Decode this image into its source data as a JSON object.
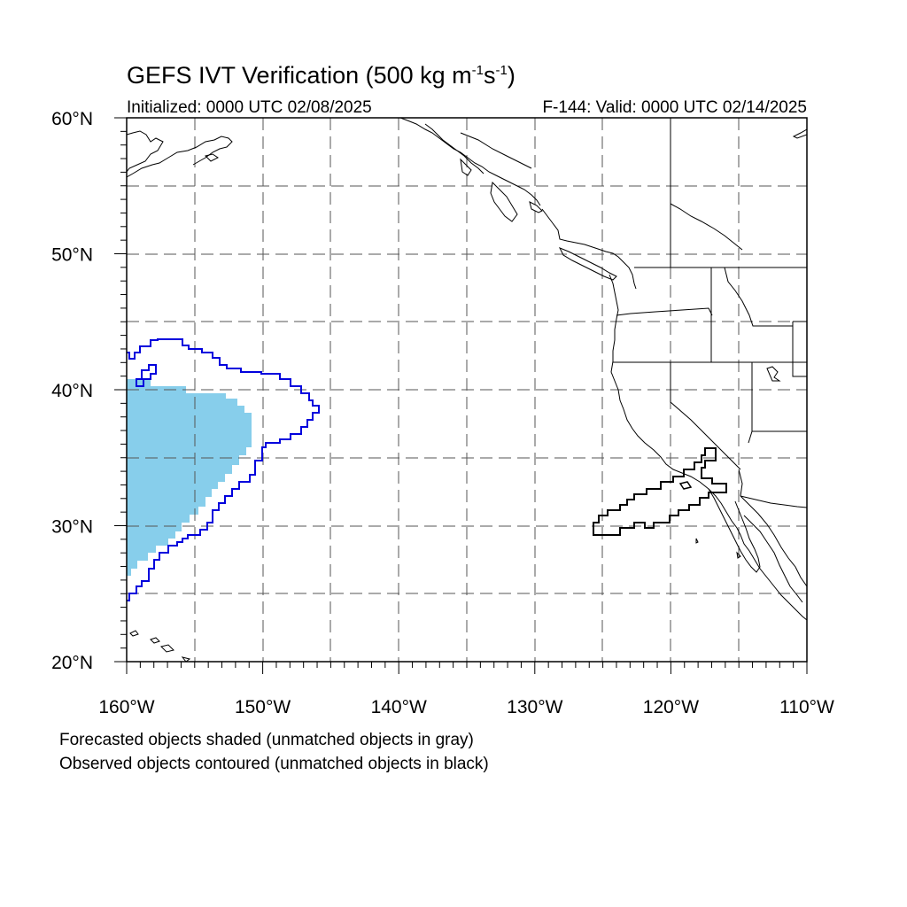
{
  "title": {
    "main": "GEFS IVT Verification (500 kg m",
    "exp1": "-1",
    "mid": "s",
    "exp2": "-1",
    "tail": ")"
  },
  "initialized": "Initialized: 0000 UTC 02/08/2025",
  "valid": "F-144: Valid: 0000 UTC 02/14/2025",
  "notes": [
    "Forecasted objects shaded (unmatched objects in gray)",
    "Observed objects contoured (unmatched objects in black)"
  ],
  "lat_labels": [
    {
      "lat": 60,
      "label": "60°N"
    },
    {
      "lat": 50,
      "label": "50°N"
    },
    {
      "lat": 40,
      "label": "40°N"
    },
    {
      "lat": 30,
      "label": "30°N"
    },
    {
      "lat": 20,
      "label": "20°N"
    }
  ],
  "lon_labels": [
    {
      "lon": -160,
      "label": "160°W"
    },
    {
      "lon": -150,
      "label": "150°W"
    },
    {
      "lon": -140,
      "label": "140°W"
    },
    {
      "lon": -130,
      "label": "130°W"
    },
    {
      "lon": -120,
      "label": "120°W"
    },
    {
      "lon": -110,
      "label": "110°W"
    }
  ],
  "colors": {
    "forecast_matched": "#87CEEB",
    "observed_matched": "#0000DD",
    "observed_unmatched": "#000000",
    "coastline": "#000000",
    "grid": "#444444"
  },
  "map": {
    "lon_range": [
      -160,
      -110
    ],
    "lat_range": [
      20,
      60
    ],
    "gridlines": "dashed every 5°"
  }
}
